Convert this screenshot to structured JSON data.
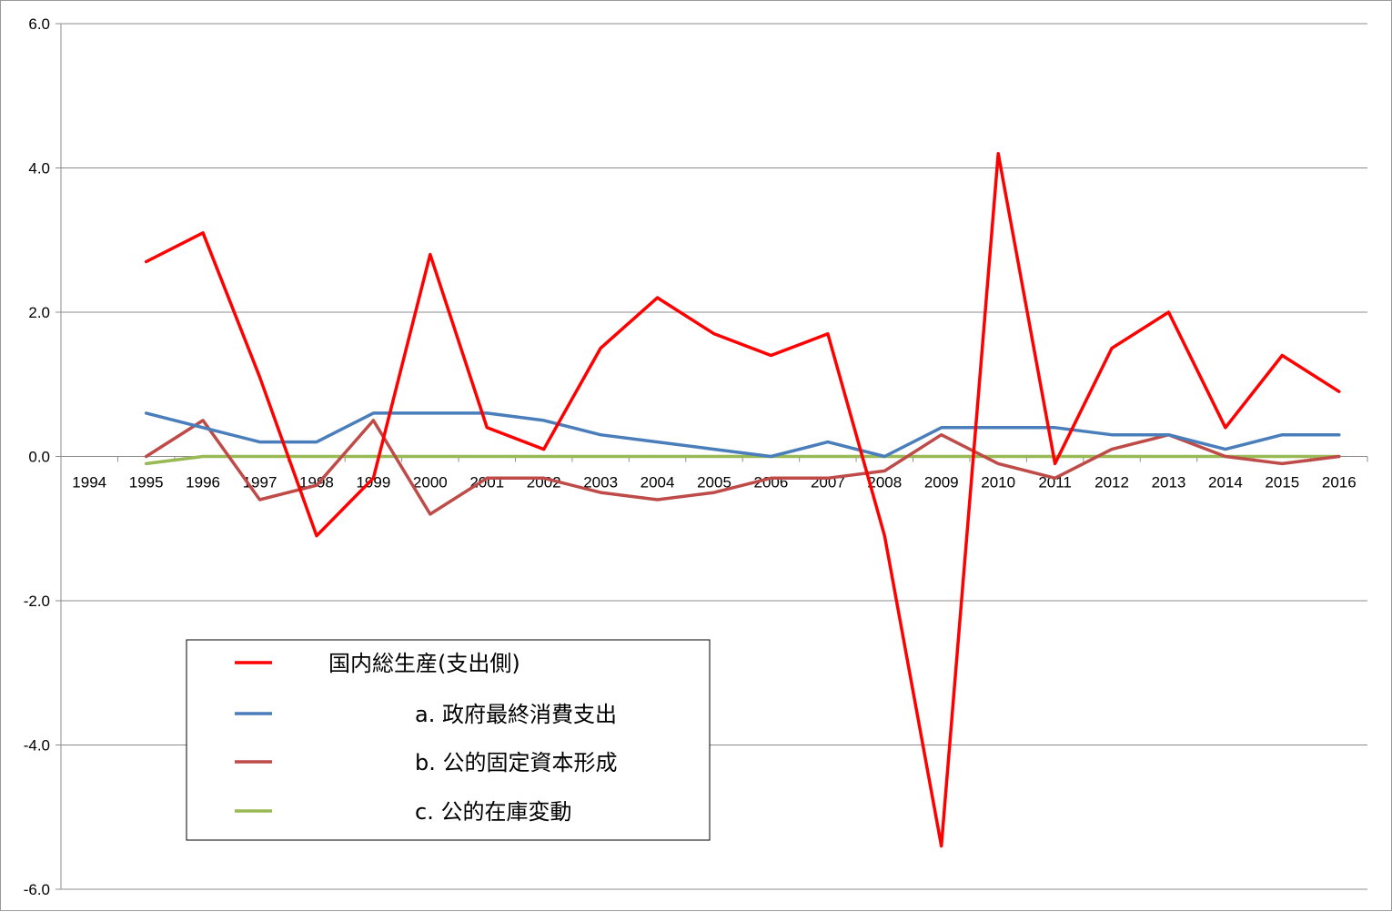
{
  "chart_data": {
    "type": "line",
    "title": "",
    "xlabel": "",
    "ylabel": "",
    "categories": [
      "1994",
      "1995",
      "1996",
      "1997",
      "1998",
      "1999",
      "2000",
      "2001",
      "2002",
      "2003",
      "2004",
      "2005",
      "2006",
      "2007",
      "2008",
      "2009",
      "2010",
      "2011",
      "2012",
      "2013",
      "2014",
      "2015",
      "2016"
    ],
    "ylim": [
      -6.0,
      6.0
    ],
    "yticks": [
      "6.0",
      "4.0",
      "2.0",
      "0.0",
      "-2.0",
      "-4.0",
      "-6.0"
    ],
    "grid": true,
    "legend_position": "bottom-left",
    "series": [
      {
        "name": "国内総生産(支出側)",
        "color": "#ff0000",
        "values": [
          null,
          2.7,
          3.1,
          1.1,
          -1.1,
          -0.3,
          2.8,
          0.4,
          0.1,
          1.5,
          2.2,
          1.7,
          1.4,
          1.7,
          -1.1,
          -5.4,
          4.2,
          -0.1,
          1.5,
          2.0,
          0.4,
          1.4,
          0.9
        ]
      },
      {
        "name": "a. 政府最終消費支出",
        "color": "#4a7ebb",
        "values": [
          null,
          0.6,
          0.4,
          0.2,
          0.2,
          0.6,
          0.6,
          0.6,
          0.5,
          0.3,
          0.2,
          0.1,
          0.0,
          0.2,
          0.0,
          0.4,
          0.4,
          0.4,
          0.3,
          0.3,
          0.1,
          0.3,
          0.3
        ]
      },
      {
        "name": "b. 公的固定資本形成",
        "color": "#be4b48",
        "values": [
          null,
          0.0,
          0.5,
          -0.6,
          -0.4,
          0.5,
          -0.8,
          -0.3,
          -0.3,
          -0.5,
          -0.6,
          -0.5,
          -0.3,
          -0.3,
          -0.2,
          0.3,
          -0.1,
          -0.3,
          0.1,
          0.3,
          0.0,
          -0.1,
          0.0
        ]
      },
      {
        "name": "c. 公的在庫変動",
        "color": "#98b954",
        "values": [
          null,
          -0.1,
          0.0,
          0.0,
          0.0,
          0.0,
          0.0,
          0.0,
          0.0,
          0.0,
          0.0,
          0.0,
          0.0,
          0.0,
          0.0,
          0.0,
          0.0,
          0.0,
          0.0,
          0.0,
          0.0,
          0.0,
          0.0
        ]
      }
    ]
  }
}
